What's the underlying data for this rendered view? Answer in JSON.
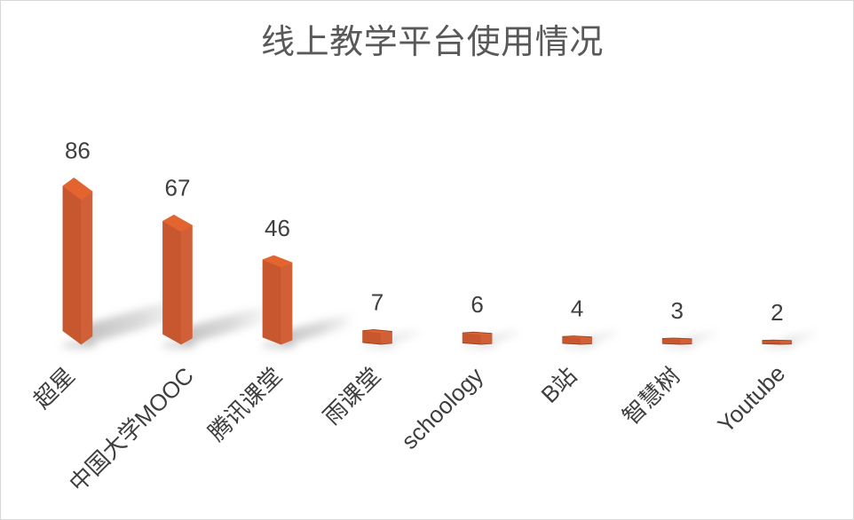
{
  "chart_data": {
    "type": "bar",
    "variant": "3d-column",
    "title": "线上教学平台使用情况",
    "categories": [
      "超星",
      "中国大学MOOC",
      "腾讯课堂",
      "雨课堂",
      "schoology",
      "B站",
      "智慧树",
      "Youtube"
    ],
    "values": [
      86,
      67,
      46,
      7,
      6,
      4,
      3,
      2
    ],
    "xlabel": "",
    "ylabel": "",
    "legend": "none",
    "grid": "off",
    "axes_visible": false,
    "value_labels_visible": true,
    "category_label_rotation_deg": -45,
    "ylim": [
      0,
      90
    ],
    "colors": {
      "bar_front": "#C6572F",
      "bar_side": "#D16038",
      "bar_top": "#E4642F",
      "bar_edge": "#8E3C1B",
      "shadow": "#808080",
      "title_text": "#595959",
      "label_text": "#3F3F3F",
      "border": "#D8D8D8",
      "background": "#FFFFFF"
    }
  }
}
